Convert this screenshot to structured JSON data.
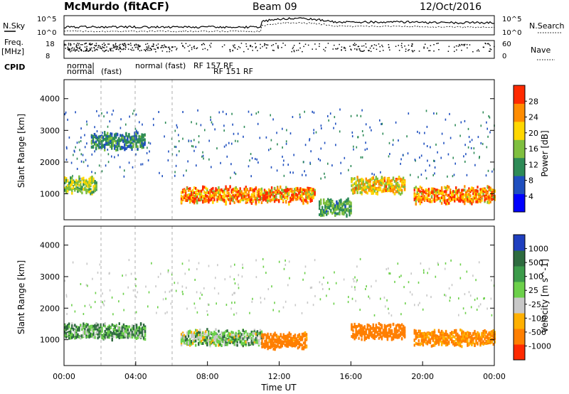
{
  "header": {
    "title": "McMurdo (fitACF)",
    "beam": "Beam 09",
    "date": "12/Oct/2016"
  },
  "top_panels": {
    "nsky_label": "N.Sky",
    "nsearch_label": "N.Search",
    "nsky_ticks": [
      "10^5",
      "10^0"
    ],
    "nsearch_ticks": [
      "10^5",
      "10^0"
    ],
    "freq_label_1": "Freq.",
    "freq_label_2": "[MHz]",
    "freq_ticks": [
      "18",
      "8"
    ],
    "nave_label": "Nave",
    "nave_ticks": [
      "60",
      "0"
    ],
    "cpid_label": "CPID",
    "cpid_texts": [
      "normal",
      "normal",
      "(fast)",
      "normal (fast)",
      "RF 157 RF",
      "RF 151 RF"
    ]
  },
  "chart_data": [
    {
      "type": "heatmap",
      "panel": "power",
      "ylabel": "Slant Range [km]",
      "yticks": [
        1000,
        2000,
        3000,
        4000
      ],
      "ylim": [
        180,
        4600
      ],
      "xlim": [
        0,
        24
      ],
      "colorbar": {
        "label": "Power [dB]",
        "ticks": [
          "28",
          "24",
          "20",
          "16",
          "12",
          "8",
          "4"
        ],
        "colors": [
          "#0000ff",
          "#1f4fbf",
          "#2e8b57",
          "#7fbf3f",
          "#ffd700",
          "#ff8c00",
          "#ff2a00"
        ]
      },
      "series": [
        {
          "start_hour": 0.0,
          "end_hour": 1.8,
          "range_km": 1300,
          "intensity": 18
        },
        {
          "start_hour": 1.5,
          "end_hour": 4.5,
          "range_km": 2700,
          "intensity": 12
        },
        {
          "start_hour": 6.5,
          "end_hour": 14.0,
          "range_km": 1000,
          "intensity": 26
        },
        {
          "start_hour": 14.2,
          "end_hour": 16.0,
          "range_km": 600,
          "intensity": 14
        },
        {
          "start_hour": 16.0,
          "end_hour": 19.0,
          "range_km": 1300,
          "intensity": 22
        },
        {
          "start_hour": 19.5,
          "end_hour": 24.0,
          "range_km": 1000,
          "intensity": 27
        }
      ]
    },
    {
      "type": "heatmap",
      "panel": "velocity",
      "ylabel": "Slant Range [km]",
      "xlabel": "Time UT",
      "xticks": [
        "00:00",
        "04:00",
        "08:00",
        "12:00",
        "16:00",
        "20:00",
        "00:00"
      ],
      "yticks": [
        1000,
        2000,
        3000,
        4000
      ],
      "ylim": [
        180,
        4600
      ],
      "xlim": [
        0,
        24
      ],
      "colorbar": {
        "label": "Velocity [m s^-1]",
        "ticks": [
          "1000",
          "500",
          "100",
          "25",
          "-25",
          "-100",
          "-500",
          "-1000"
        ],
        "colors": [
          "#1f3fbf",
          "#2e6b3f",
          "#3c9b4a",
          "#6cd04a",
          "#c8c8c8",
          "#ffb000",
          "#ff7f00",
          "#ff2a00"
        ]
      },
      "series": [
        {
          "start_hour": 0.0,
          "end_hour": 4.5,
          "range_km": 1300,
          "velocity": 100
        },
        {
          "start_hour": 6.5,
          "end_hour": 11.0,
          "range_km": 1100,
          "velocity": 50
        },
        {
          "start_hour": 11.0,
          "end_hour": 13.5,
          "range_km": 1000,
          "velocity": -200
        },
        {
          "start_hour": 16.0,
          "end_hour": 19.0,
          "range_km": 1300,
          "velocity": -300
        },
        {
          "start_hour": 19.5,
          "end_hour": 24.0,
          "range_km": 1100,
          "velocity": -150
        }
      ]
    }
  ]
}
